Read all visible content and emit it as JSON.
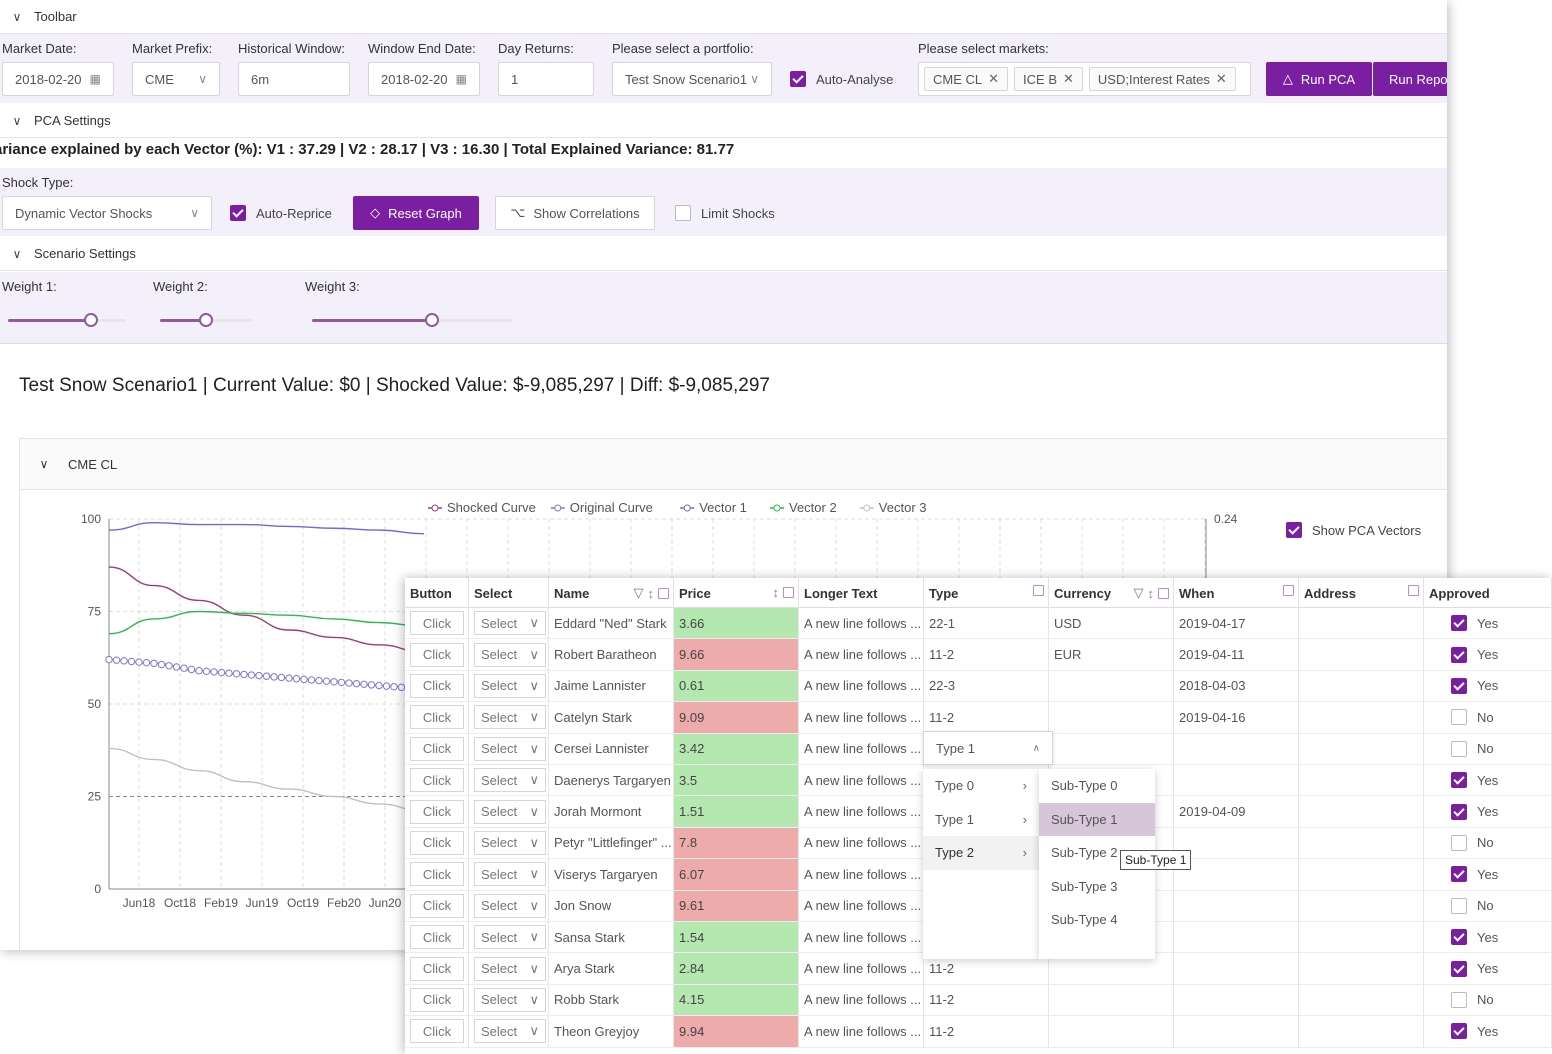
{
  "toolbar": {
    "title": "Toolbar",
    "fields": {
      "market_date": {
        "label": "Market Date",
        "value": "2018-02-20"
      },
      "market_prefix": {
        "label": "Market Prefix",
        "value": "CME"
      },
      "historical_window": {
        "label": "Historical Window",
        "value": "6m"
      },
      "window_end_date": {
        "label": "Window End Date",
        "value": "2018-02-20"
      },
      "day_returns": {
        "label": "Day Returns",
        "value": "1"
      },
      "portfolio": {
        "label": "Please select a portfolio",
        "value": "Test Snow Scenario1"
      },
      "auto_analyse": {
        "label": "Auto-Analyse",
        "checked": true
      },
      "markets": {
        "label": "Please select markets",
        "tags": [
          "CME CL",
          "ICE B",
          "USD;Interest Rates"
        ]
      }
    },
    "run_pca_label": "Run PCA",
    "run_report_label": "Run Repor"
  },
  "pca_settings": {
    "title": "PCA Settings",
    "variance_text": "ariance explained by each Vector (%): V1 : 37.29 | V2 : 28.17 | V3 : 16.30 | Total Explained Variance: 81.77",
    "shock_type": {
      "label": "Shock Type",
      "value": "Dynamic Vector Shocks"
    },
    "auto_reprice": {
      "label": "Auto-Reprice",
      "checked": true
    },
    "reset_graph_label": "Reset Graph",
    "show_correlations_label": "Show Correlations",
    "limit_shocks": {
      "label": "Limit Shocks",
      "checked": false
    }
  },
  "scenario_settings": {
    "title": "Scenario Settings",
    "weights": [
      {
        "label": "Weight 1",
        "value": 0.7
      },
      {
        "label": "Weight 2",
        "value": 0.5
      },
      {
        "label": "Weight 3",
        "value": 0.6
      }
    ]
  },
  "summary": "Test Snow Scenario1 | Current Value: $0 | Shocked Value: $-9,085,297 | Diff: $-9,085,297",
  "market_panel": {
    "title": "CME CL",
    "show_pca_vectors": {
      "label": "Show PCA Vectors",
      "checked": true
    }
  },
  "chart_data": {
    "type": "line",
    "legend_position": "top-center",
    "x_tick_labels": [
      "Jun18",
      "Oct18",
      "Feb19",
      "Jun19",
      "Oct19",
      "Feb20",
      "Jun20"
    ],
    "y_ticks": [
      0,
      25,
      50,
      75,
      100
    ],
    "ylim": [
      0,
      100
    ],
    "y2_label": "0.24",
    "grid": true,
    "series": [
      {
        "name": "Shocked Curve",
        "color": "#9b3b7e",
        "values": [
          87,
          82,
          78,
          74,
          70,
          68,
          66,
          64
        ]
      },
      {
        "name": "Original Curve",
        "color": "#7a79d8",
        "values": [
          62,
          61,
          59,
          58,
          57,
          56,
          55,
          54
        ]
      },
      {
        "name": "Vector 1",
        "color": "#6a6ae0",
        "values": [
          97,
          99,
          98.5,
          98.5,
          98,
          97.5,
          97,
          96
        ]
      },
      {
        "name": "Vector 2",
        "color": "#2eb84a",
        "values": [
          69,
          73,
          75,
          74.5,
          74,
          73,
          72,
          71
        ]
      },
      {
        "name": "Vector 3",
        "color": "#c0c0c0",
        "values": [
          38,
          35,
          32,
          29,
          27,
          25,
          23,
          21
        ]
      }
    ]
  },
  "grid": {
    "columns": [
      "Button",
      "Select",
      "Name",
      "Price",
      "Longer Text",
      "Type",
      "Currency",
      "When",
      "Address",
      "Approved"
    ],
    "button_label": "Click",
    "select_label": "Select",
    "rows": [
      {
        "name": "Eddard \"Ned\" Stark",
        "price": "3.66",
        "trend": "up",
        "text": "A new line follows ...",
        "type": "22-1",
        "currency": "USD",
        "when": "2019-04-17",
        "approved": true,
        "approved_label": "Yes"
      },
      {
        "name": "Robert Baratheon",
        "price": "9.66",
        "trend": "down",
        "text": "A new line follows ...",
        "type": "11-2",
        "currency": "EUR",
        "when": "2019-04-11",
        "approved": true,
        "approved_label": "Yes"
      },
      {
        "name": "Jaime Lannister",
        "price": "0.61",
        "trend": "up",
        "text": "A new line follows ...",
        "type": "22-3",
        "currency": "",
        "when": "2018-04-03",
        "approved": true,
        "approved_label": "Yes"
      },
      {
        "name": "Catelyn Stark",
        "price": "9.09",
        "trend": "down",
        "text": "A new line follows ...",
        "type": "11-2",
        "currency": "",
        "when": "2019-04-16",
        "approved": false,
        "approved_label": "No"
      },
      {
        "name": "Cersei Lannister",
        "price": "3.42",
        "trend": "up",
        "text": "A new line follows ...",
        "type": "",
        "currency": "",
        "when": "",
        "approved": false,
        "approved_label": "No"
      },
      {
        "name": "Daenerys Targaryen",
        "price": "3.5",
        "trend": "up",
        "text": "A new line follows ...",
        "type": "",
        "currency": "",
        "when": "",
        "approved": true,
        "approved_label": "Yes"
      },
      {
        "name": "Jorah Mormont",
        "price": "1.51",
        "trend": "up",
        "text": "A new line follows ...",
        "type": "",
        "currency": "",
        "when": "2019-04-09",
        "approved": true,
        "approved_label": "Yes"
      },
      {
        "name": "Petyr \"Littlefinger\" ...",
        "price": "7.8",
        "trend": "down",
        "text": "A new line follows ...",
        "type": "",
        "currency": "",
        "when": "",
        "approved": false,
        "approved_label": "No"
      },
      {
        "name": "Viserys Targaryen",
        "price": "6.07",
        "trend": "down",
        "text": "A new line follows ...",
        "type": "",
        "currency": "",
        "when": "",
        "approved": true,
        "approved_label": "Yes"
      },
      {
        "name": "Jon Snow",
        "price": "9.61",
        "trend": "down",
        "text": "A new line follows ...",
        "type": "",
        "currency": "",
        "when": "",
        "approved": false,
        "approved_label": "No"
      },
      {
        "name": "Sansa Stark",
        "price": "1.54",
        "trend": "up",
        "text": "A new line follows ...",
        "type": "",
        "currency": "",
        "when": "",
        "approved": true,
        "approved_label": "Yes"
      },
      {
        "name": "Arya Stark",
        "price": "2.84",
        "trend": "up",
        "text": "A new line follows ...",
        "type": "11-2",
        "currency": "",
        "when": "",
        "approved": true,
        "approved_label": "Yes"
      },
      {
        "name": "Robb Stark",
        "price": "4.15",
        "trend": "up",
        "text": "A new line follows ...",
        "type": "11-2",
        "currency": "",
        "when": "",
        "approved": false,
        "approved_label": "No"
      },
      {
        "name": "Theon Greyjoy",
        "price": "9.94",
        "trend": "down",
        "text": "A new line follows ...",
        "type": "11-2",
        "currency": "",
        "when": "",
        "approved": true,
        "approved_label": "Yes"
      }
    ]
  },
  "type_dropdown": {
    "selected": "Type 1",
    "types": [
      "Type 0",
      "Type 1",
      "Type 2"
    ],
    "subtypes": [
      "Sub-Type 0",
      "Sub-Type 1",
      "Sub-Type 2",
      "Sub-Type 3",
      "Sub-Type 4"
    ],
    "tooltip": "Sub-Type 1"
  }
}
